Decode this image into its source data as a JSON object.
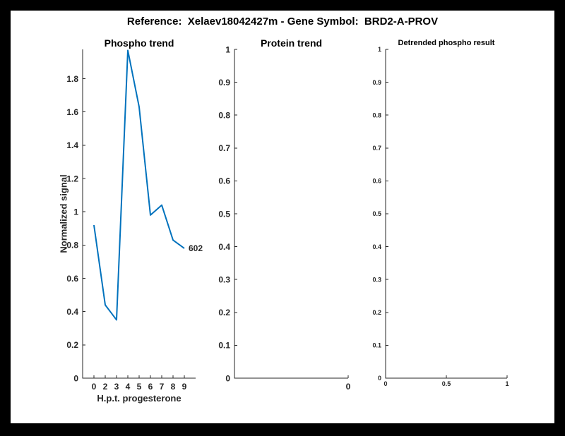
{
  "window": {
    "surround_color": "#000000",
    "canvas_color": "#ffffff"
  },
  "header": {
    "title": "Reference:  Xelaev18042427m - Gene Symbol:  BRD2-A-PROV"
  },
  "colors": {
    "line": "#0072BD",
    "axis": "#262626",
    "tick_label": "#262626",
    "annotation": "#262626"
  },
  "chart_data": [
    {
      "type": "line",
      "title": "Phospho trend",
      "xlabel": "H.p.t. progesterone",
      "ylabel": "Normalized signal",
      "xlim": [
        0,
        10
      ],
      "ylim": [
        0,
        1.976
      ],
      "x": [
        1,
        2,
        3,
        4,
        5,
        6,
        7,
        8,
        9
      ],
      "x_ticks": [
        1,
        2,
        3,
        4,
        5,
        6,
        7,
        8,
        9
      ],
      "x_tick_labels": [
        "0",
        "2",
        "3",
        "4",
        "5",
        "6",
        "7",
        "8",
        "9"
      ],
      "values": [
        0.92,
        0.44,
        0.35,
        1.97,
        1.63,
        0.98,
        1.04,
        0.83,
        0.78
      ],
      "y_ticks": [
        0,
        0.2,
        0.4,
        0.6,
        0.8,
        1,
        1.2,
        1.4,
        1.6,
        1.8
      ],
      "y_tick_labels": [
        "0",
        "0.2",
        "0.4",
        "0.6",
        "0.8",
        "1",
        "1.2",
        "1.4",
        "1.6",
        "1.8"
      ],
      "end_label": "602",
      "line_color": "#0072BD",
      "grid": false,
      "legend": "none"
    },
    {
      "type": "line",
      "title": "Protein trend",
      "xlabel": "",
      "ylabel": "",
      "xlim": [
        0,
        1
      ],
      "ylim": [
        0,
        1
      ],
      "x": [],
      "x_ticks": [
        1
      ],
      "x_tick_labels": [
        "0"
      ],
      "values": [],
      "y_ticks": [
        0,
        0.1,
        0.2,
        0.3,
        0.4,
        0.5,
        0.6,
        0.7,
        0.8,
        0.9,
        1
      ],
      "y_tick_labels": [
        "0",
        "0.1",
        "0.2",
        "0.3",
        "0.4",
        "0.5",
        "0.6",
        "0.7",
        "0.8",
        "0.9",
        "1"
      ],
      "end_label": "",
      "line_color": "#0072BD",
      "grid": false,
      "legend": "none"
    },
    {
      "type": "line",
      "title": "Detrended phospho result",
      "xlabel": "",
      "ylabel": "",
      "xlim": [
        0,
        1
      ],
      "ylim": [
        0,
        1
      ],
      "x": [],
      "x_ticks": [
        0,
        0.5,
        1
      ],
      "x_tick_labels": [
        "0",
        "0.5",
        "1"
      ],
      "values": [],
      "y_ticks": [
        0,
        0.1,
        0.2,
        0.3,
        0.4,
        0.5,
        0.6,
        0.7,
        0.8,
        0.9,
        1
      ],
      "y_tick_labels": [
        "0",
        "0.1",
        "0.2",
        "0.3",
        "0.4",
        "0.5",
        "0.6",
        "0.7",
        "0.8",
        "0.9",
        "1"
      ],
      "end_label": "",
      "line_color": "#0072BD",
      "grid": false,
      "legend": "none"
    }
  ]
}
